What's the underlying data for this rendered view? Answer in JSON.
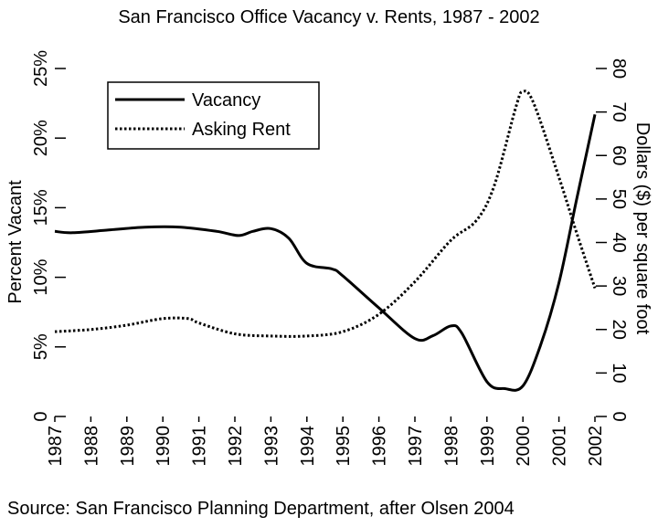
{
  "chart_data": {
    "type": "line",
    "title": "San Francisco Office Vacancy v. Rents, 1987 - 2002",
    "source": "Source: San Francisco Planning Department, after Olsen 2004",
    "x_ticks": [
      "1987",
      "1988",
      "1989",
      "1990",
      "1991",
      "1992",
      "1993",
      "1994",
      "1995",
      "1996",
      "1997",
      "1998",
      "1999",
      "2000",
      "2001",
      "2002"
    ],
    "xlim": [
      1987,
      2002
    ],
    "left_axis": {
      "label": "Percent Vacant",
      "ylim": [
        0,
        25
      ],
      "ticks": [
        {
          "value": 0,
          "label": "0"
        },
        {
          "value": 5,
          "label": "5%"
        },
        {
          "value": 10,
          "label": "10%"
        },
        {
          "value": 15,
          "label": "15%"
        },
        {
          "value": 20,
          "label": "20%"
        },
        {
          "value": 25,
          "label": "25%"
        }
      ]
    },
    "right_axis": {
      "label": "Dollars ($) per square foot",
      "ylim": [
        0,
        80
      ],
      "ticks": [
        {
          "value": 0,
          "label": "0"
        },
        {
          "value": 10,
          "label": "10"
        },
        {
          "value": 20,
          "label": "20"
        },
        {
          "value": 30,
          "label": "30"
        },
        {
          "value": 40,
          "label": "40"
        },
        {
          "value": 50,
          "label": "50"
        },
        {
          "value": 60,
          "label": "60"
        },
        {
          "value": 70,
          "label": "70"
        },
        {
          "value": 80,
          "label": "80"
        }
      ]
    },
    "legend": {
      "placement": "top-left"
    },
    "series": [
      {
        "name": "Vacancy",
        "axis": "left",
        "style": "solid",
        "x": [
          1987,
          1987.5,
          1988.5,
          1989.5,
          1990.5,
          1991.5,
          1992.1,
          1992.5,
          1993.0,
          1993.5,
          1994.0,
          1994.7,
          1995.0,
          1996.0,
          1997.0,
          1997.5,
          1998.0,
          1998.3,
          1999.0,
          1999.5,
          2000.0,
          2000.5,
          2001.0,
          2001.5,
          2002.0
        ],
        "values": [
          13.3,
          13.2,
          13.4,
          13.6,
          13.6,
          13.3,
          13.0,
          13.3,
          13.5,
          12.8,
          11.0,
          10.6,
          10.1,
          7.8,
          5.6,
          5.8,
          6.5,
          6.0,
          2.5,
          2.0,
          2.2,
          5.2,
          9.6,
          15.7,
          21.7
        ]
      },
      {
        "name": "Asking Rent",
        "axis": "right",
        "style": "dotted",
        "x": [
          1987,
          1988,
          1989,
          1990,
          1990.7,
          1991,
          1992,
          1993,
          1994,
          1995,
          1996,
          1997,
          1998,
          1998.7,
          1999.2,
          1999.8,
          2000,
          2000.3,
          2001,
          2001.5,
          2002
        ],
        "values": [
          19.5,
          20.0,
          21.0,
          22.5,
          22.5,
          21.5,
          19.0,
          18.5,
          18.5,
          19.5,
          23.5,
          31.0,
          40.5,
          45.0,
          53.0,
          71.0,
          74.7,
          72.0,
          55.0,
          42.0,
          29.5
        ]
      }
    ]
  }
}
